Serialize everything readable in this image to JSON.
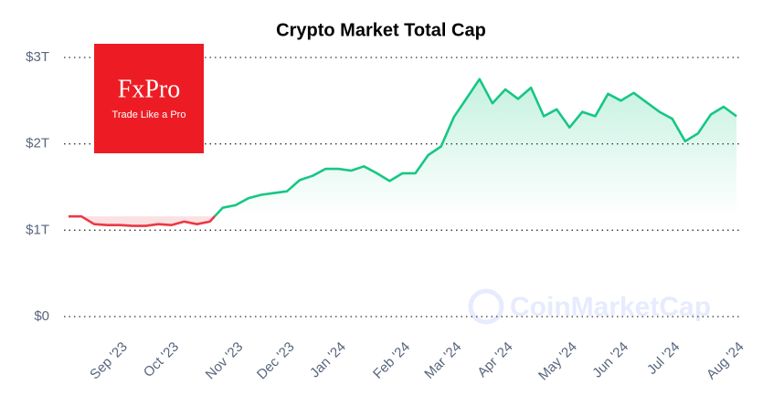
{
  "chart_data": {
    "type": "line",
    "title": "Crypto Market Total Cap",
    "categories": [
      null,
      null,
      null,
      null,
      "Sep '23",
      null,
      null,
      null,
      "Oct '23",
      null,
      null,
      null,
      null,
      "Nov '23",
      null,
      null,
      null,
      "Dec '23",
      null,
      null,
      null,
      "Jan '24",
      null,
      null,
      null,
      null,
      "Feb '24",
      null,
      null,
      null,
      "Mar '24",
      null,
      null,
      null,
      "Apr '24",
      null,
      null,
      null,
      null,
      "May '24",
      null,
      null,
      null,
      "Jun '24",
      null,
      null,
      null,
      "Jul '24",
      null,
      null,
      null,
      null,
      "Aug '24"
    ],
    "values": [
      1.16,
      1.16,
      1.07,
      1.06,
      1.06,
      1.05,
      1.05,
      1.07,
      1.06,
      1.1,
      1.07,
      1.1,
      1.26,
      1.29,
      1.37,
      1.41,
      1.43,
      1.45,
      1.58,
      1.63,
      1.71,
      1.71,
      1.69,
      1.74,
      1.66,
      1.57,
      1.66,
      1.66,
      1.87,
      1.97,
      2.31,
      2.53,
      2.75,
      2.47,
      2.63,
      2.52,
      2.65,
      2.32,
      2.4,
      2.19,
      2.37,
      2.32,
      2.58,
      2.5,
      2.59,
      2.48,
      2.37,
      2.29,
      2.03,
      2.12,
      2.34,
      2.43,
      2.32
    ],
    "color_above": "#16c784",
    "color_below": "#ea3943",
    "ylim": [
      0,
      3
    ],
    "yticks": [
      {
        "value": 0,
        "label": "$0"
      },
      {
        "value": 1,
        "label": "$1T"
      },
      {
        "value": 2,
        "label": "$2T"
      },
      {
        "value": 3,
        "label": "$3T"
      }
    ],
    "grid": true
  },
  "logo": {
    "name": "FxPro",
    "tagline": "Trade Like a Pro"
  },
  "watermark": "CoinMarketCap"
}
